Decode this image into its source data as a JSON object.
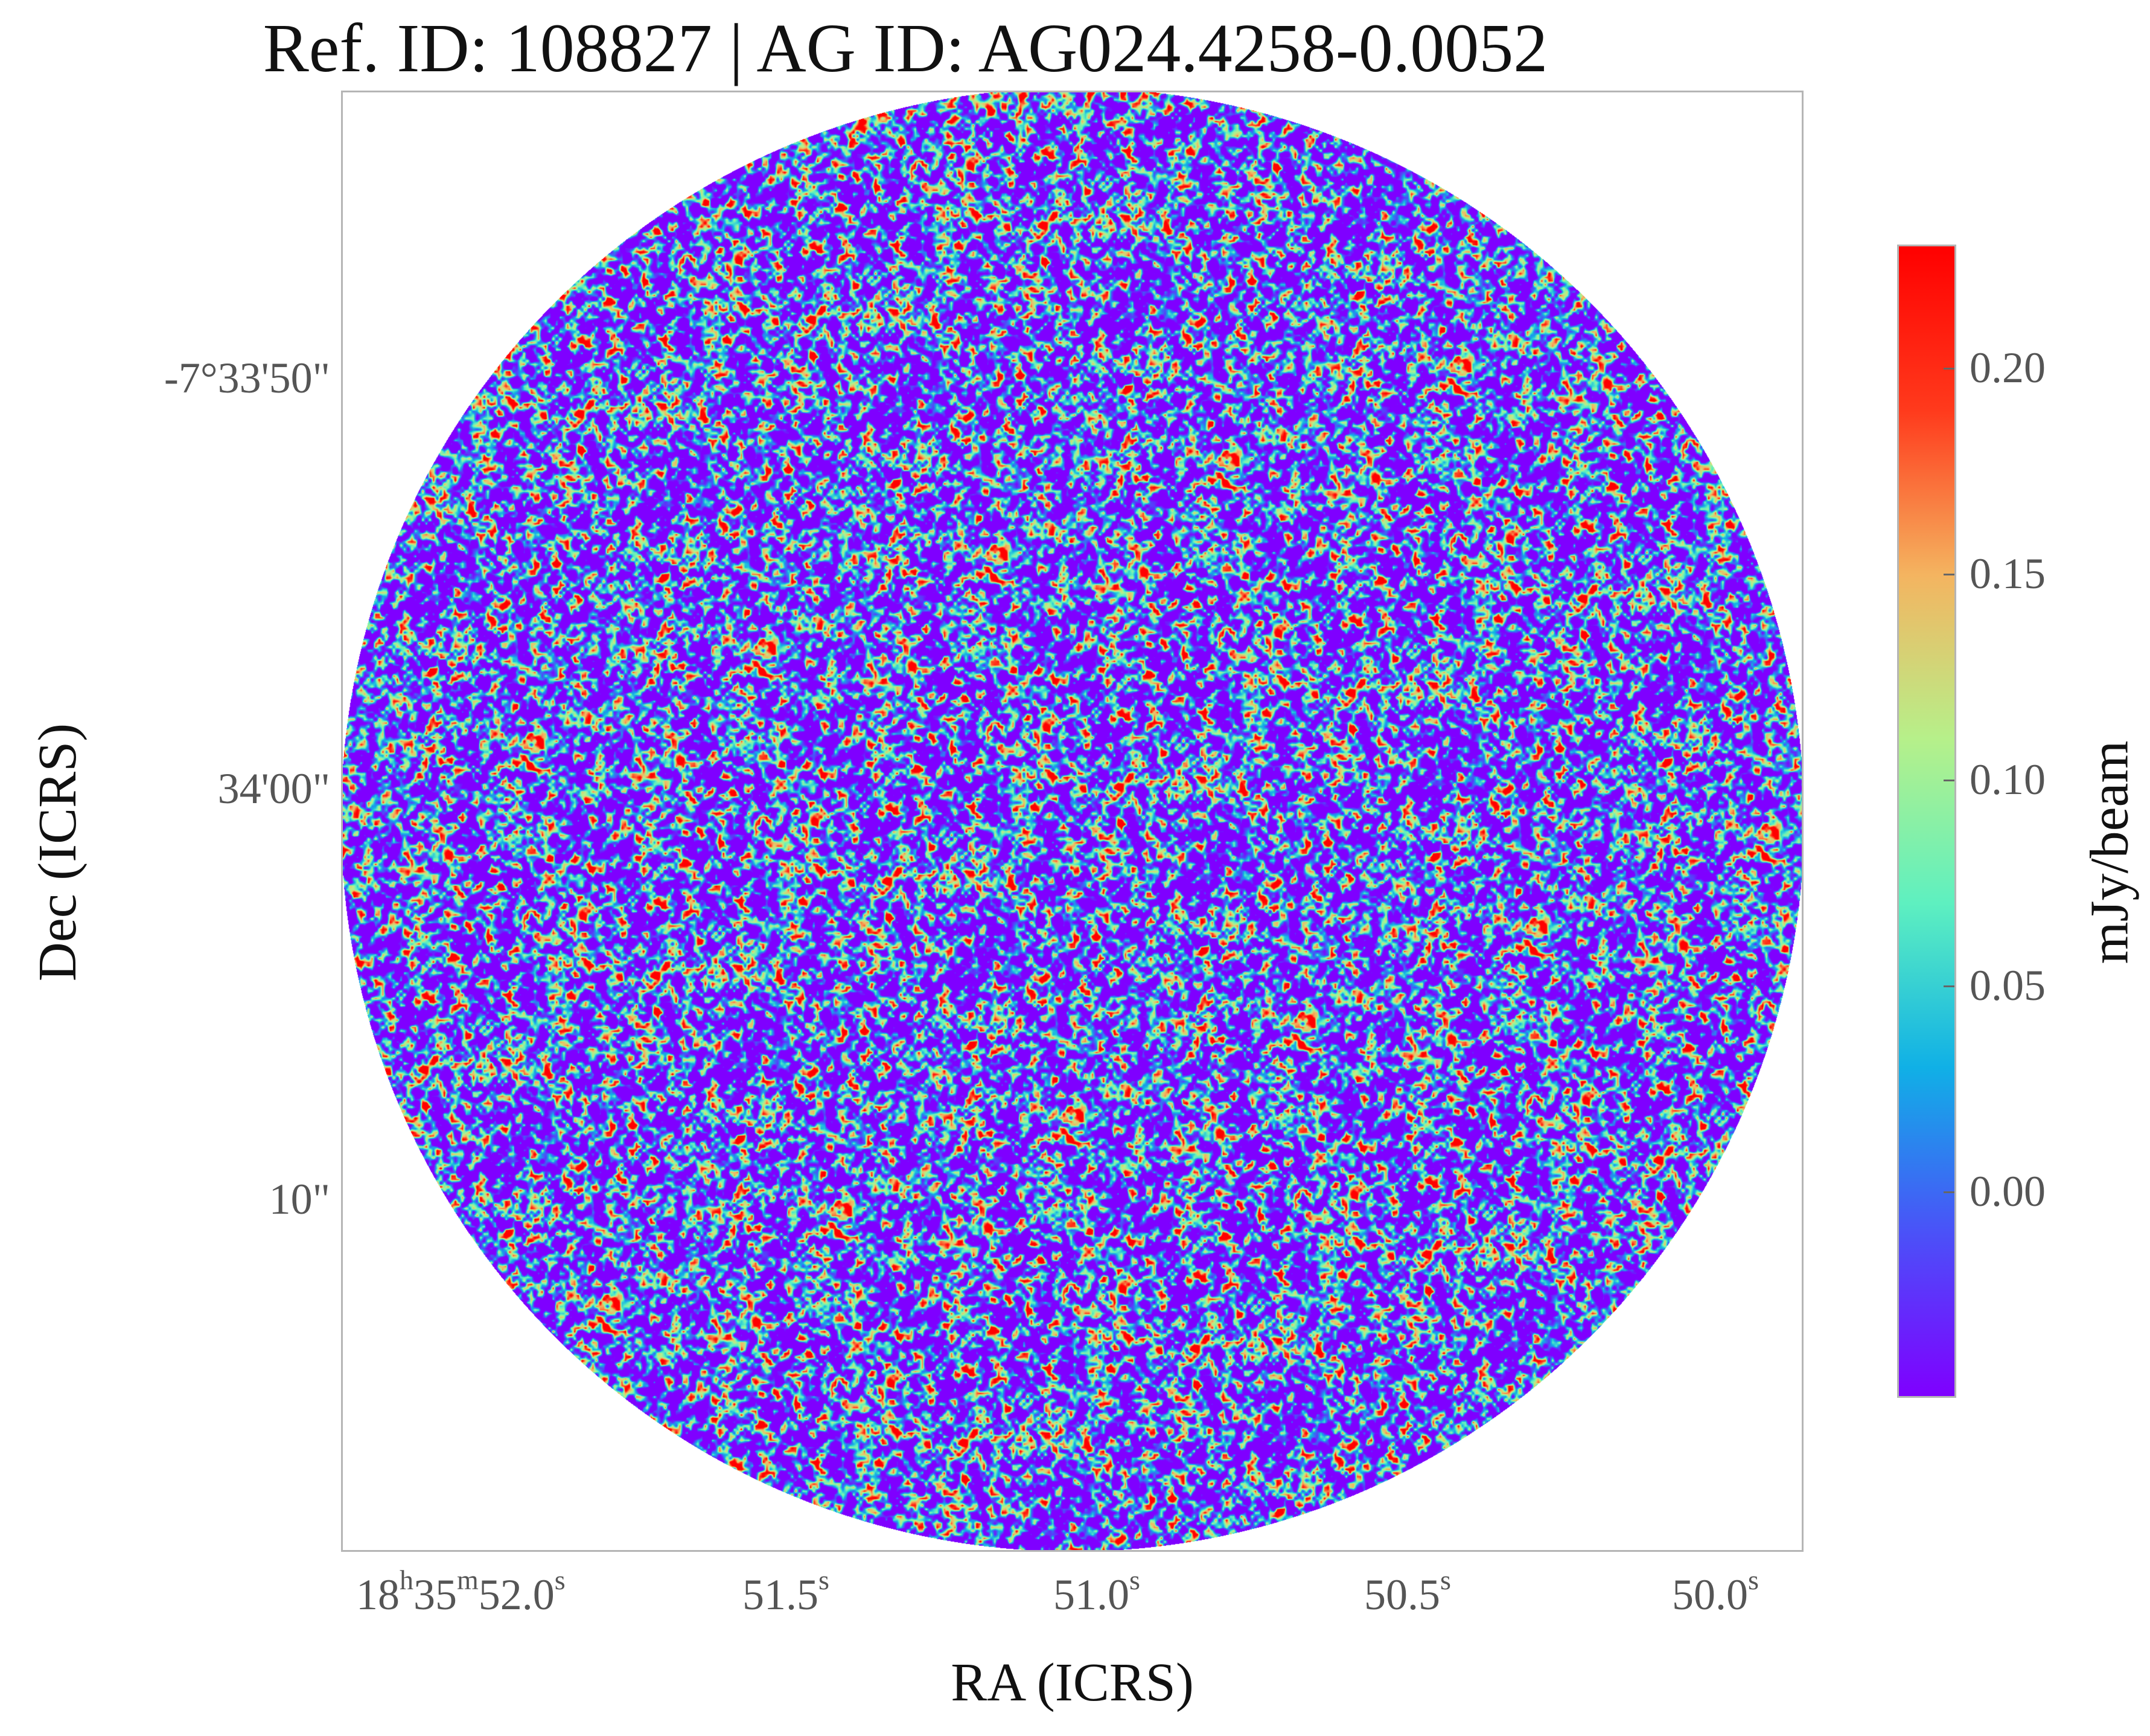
{
  "title": "Ref. ID: 108827 | AG ID: AG024.4258-0.0052",
  "axes": {
    "xlabel": "RA (ICRS)",
    "ylabel": "Dec (ICRS)",
    "yticks": [
      "-7°33'50\"",
      "34'00\"",
      "10\""
    ],
    "xticks": [
      {
        "main": "18",
        "h": "h",
        "mid": "35",
        "m": "m",
        "sec": "52.0",
        "s": "s"
      },
      {
        "main": "",
        "h": "",
        "mid": "",
        "m": "",
        "sec": "51.5",
        "s": "s"
      },
      {
        "main": "",
        "h": "",
        "mid": "",
        "m": "",
        "sec": "51.0",
        "s": "s"
      },
      {
        "main": "",
        "h": "",
        "mid": "",
        "m": "",
        "sec": "50.5",
        "s": "s"
      },
      {
        "main": "",
        "h": "",
        "mid": "",
        "m": "",
        "sec": "50.0",
        "s": "s"
      }
    ]
  },
  "colorbar": {
    "label": "mJy/beam",
    "ticks": [
      "0.20",
      "0.15",
      "0.10",
      "0.05",
      "0.00"
    ],
    "tick_values": [
      0.2,
      0.15,
      0.1,
      0.05,
      0.0
    ],
    "range": [
      -0.05,
      0.23
    ],
    "colormap": "rainbow",
    "colors": [
      "#7f00ff",
      "#4a52f8",
      "#10b0e6",
      "#5ef0c0",
      "#b6f08a",
      "#f4b460",
      "#ff3a1c",
      "#ff0000"
    ]
  }
}
